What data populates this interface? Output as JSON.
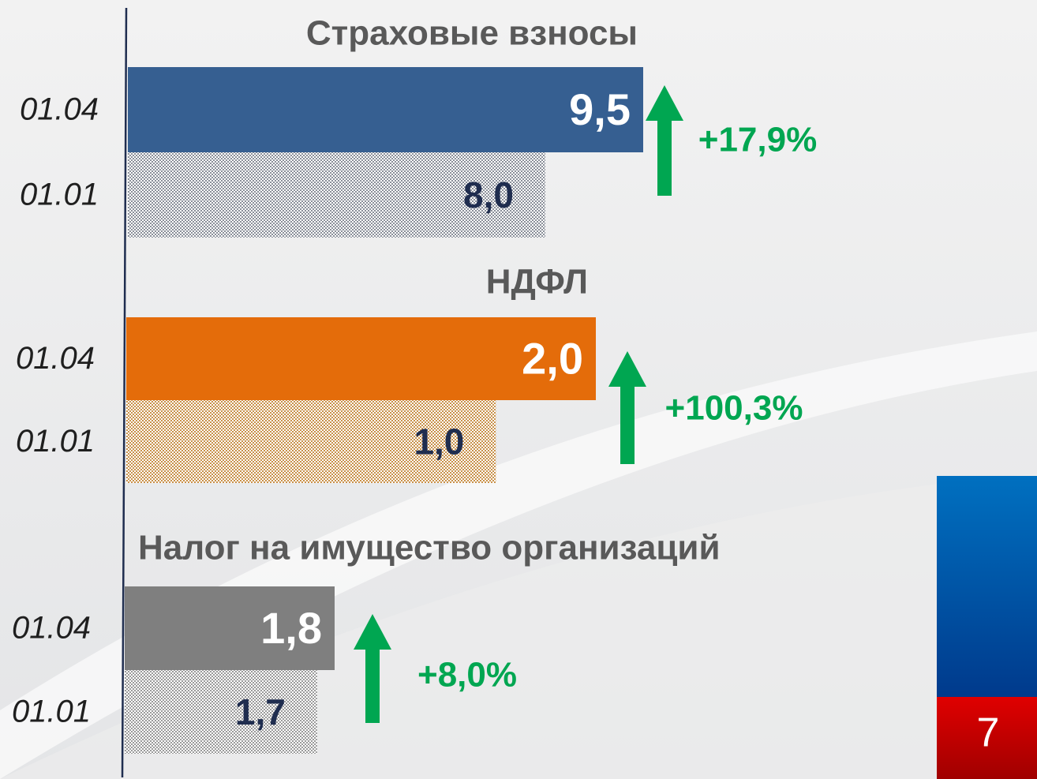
{
  "chart_data": [
    {
      "type": "bar",
      "title": "Страховые взносы",
      "categories": [
        "01.04",
        "01.01"
      ],
      "values": [
        9.5,
        8.0
      ],
      "value_labels": [
        "9,5",
        "8,0"
      ],
      "colors": [
        "#365f91",
        "#8a8f99"
      ],
      "xlim": [
        1.6,
        9.5
      ],
      "annotation": "+17,9%",
      "annotation_color": "#00a651"
    },
    {
      "type": "bar",
      "title": "НДФЛ",
      "categories": [
        "01.04",
        "01.01"
      ],
      "values": [
        2.0,
        1.0
      ],
      "value_labels": [
        "2,0",
        "1,0"
      ],
      "colors": [
        "#e46c0a",
        "#c8914a"
      ],
      "xlim": [
        -2.7,
        2.0
      ],
      "annotation": "+100,3%",
      "annotation_color": "#00a651"
    },
    {
      "type": "bar",
      "title": "Налог на имущество организаций",
      "categories": [
        "01.04",
        "01.01"
      ],
      "values": [
        1.8,
        1.7
      ],
      "value_labels": [
        "1,8",
        "1,7"
      ],
      "colors": [
        "#7f7f7f",
        "#9a9a9a"
      ],
      "xlim": [
        0.6,
        1.8
      ],
      "annotation": "+8,0%",
      "annotation_color": "#00a651"
    }
  ],
  "page_number": "7"
}
